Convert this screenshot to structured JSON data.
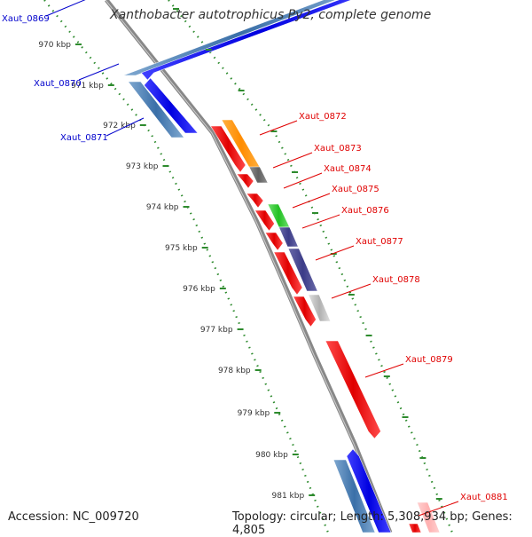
{
  "title": "Xanthobacter autotrophicus Py2, complete genome",
  "accession": "Accession: NC_009720",
  "summary": "Topology: circular; Length: 5,308,934 bp; Genes: 4,805",
  "colors": {
    "backbone": "#888888",
    "tick": "#2e8b2e",
    "left_label": "#0000cc",
    "right_label": "#e00000"
  },
  "ticks": [
    "970 kbp",
    "971 kbp",
    "972 kbp",
    "973 kbp",
    "974 kbp",
    "975 kbp",
    "976 kbp",
    "977 kbp",
    "978 kbp",
    "979 kbp",
    "980 kbp",
    "981 kbp"
  ],
  "left_genes": [
    {
      "label": "Xaut_0869"
    },
    {
      "label": "Xaut_0870"
    },
    {
      "label": "Xaut_0871"
    }
  ],
  "right_genes": [
    {
      "label": "Xaut_0872"
    },
    {
      "label": "Xaut_0873"
    },
    {
      "label": "Xaut_0874"
    },
    {
      "label": "Xaut_0875"
    },
    {
      "label": "Xaut_0876"
    },
    {
      "label": "Xaut_0877"
    },
    {
      "label": "Xaut_0878"
    },
    {
      "label": "Xaut_0879"
    },
    {
      "label": "Xaut_0881"
    }
  ]
}
